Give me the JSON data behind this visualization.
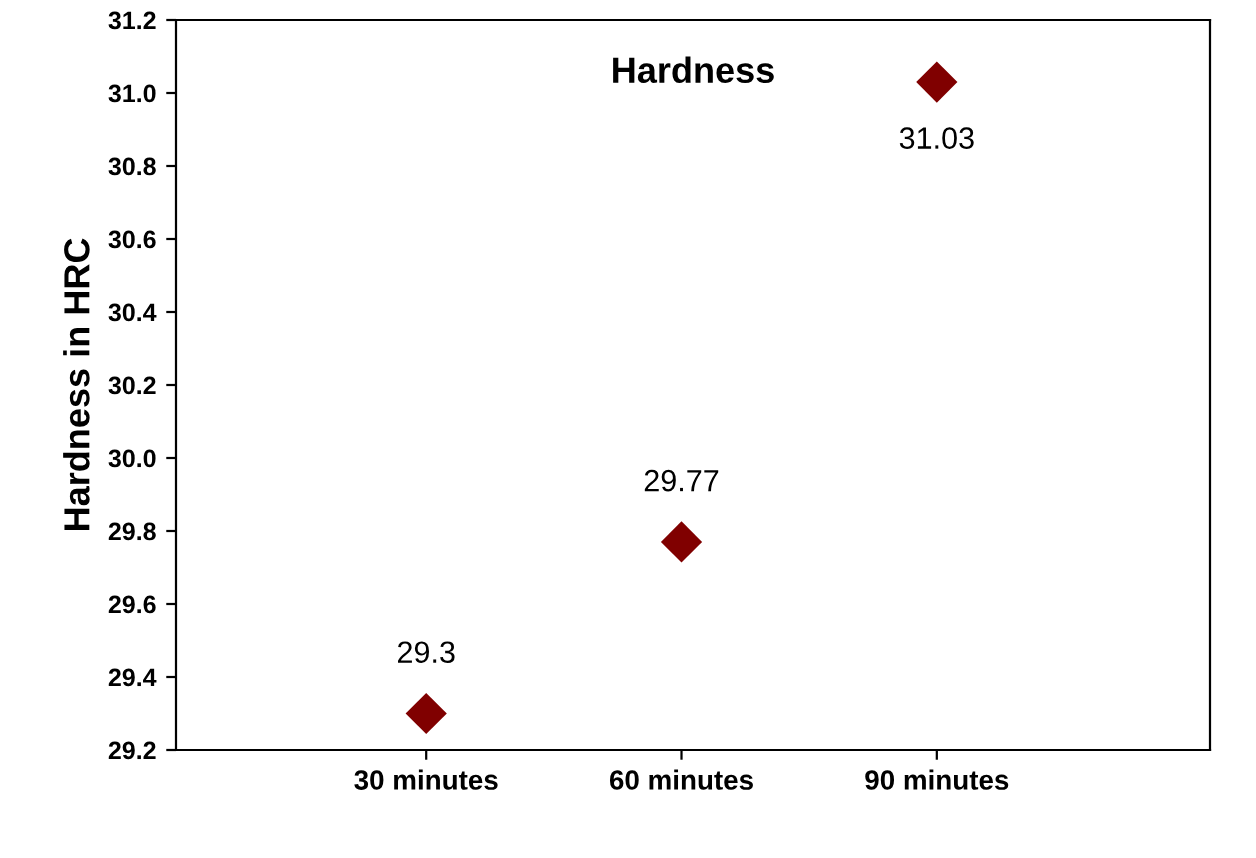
{
  "chart_data": {
    "type": "scatter",
    "title": "Hardness",
    "ylabel": "Hardness in HRC",
    "categories": [
      "30 minutes",
      "60 minutes",
      "90 minutes"
    ],
    "series": [
      {
        "color": "#800000",
        "values": [
          29.3,
          29.77,
          31.03
        ]
      }
    ],
    "ylim": [
      29.2,
      31.2
    ],
    "yticks": [
      29.2,
      29.4,
      29.6,
      29.8,
      {
        "value": 30.0,
        "label": "30.0"
      },
      30.2,
      30.4,
      30.6,
      30.8,
      {
        "value": 31.0,
        "label": "31.0"
      },
      31.2
    ],
    "marker": "diamond",
    "data_labels": true
  }
}
